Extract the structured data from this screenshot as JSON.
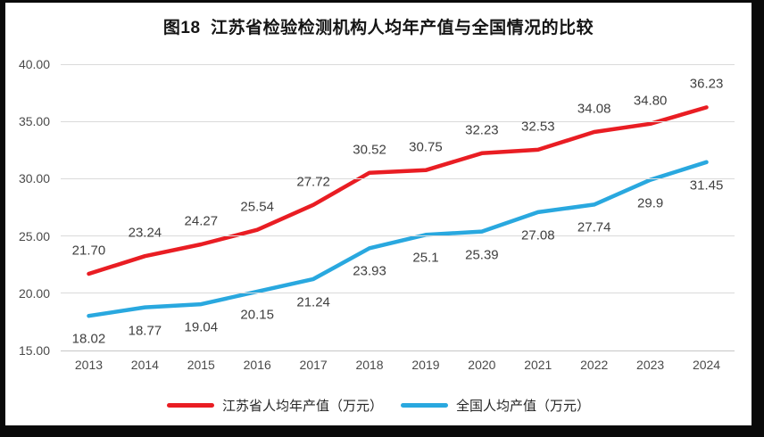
{
  "page": {
    "title": "图18  江苏省检验检测机构人均年产值与全国情况的比较"
  },
  "chart_data": {
    "type": "line",
    "title": "图18  江苏省检验检测机构人均年产值与全国情况的比较",
    "categories": [
      "2013",
      "2014",
      "2015",
      "2016",
      "2017",
      "2018",
      "2019",
      "2020",
      "2021",
      "2022",
      "2023",
      "2024"
    ],
    "series": [
      {
        "name": "江苏省人均年产值（万元）",
        "color": "#e91d23",
        "values": [
          21.7,
          23.24,
          24.27,
          25.54,
          27.72,
          30.52,
          30.75,
          32.23,
          32.53,
          34.08,
          34.8,
          36.23
        ],
        "labels": [
          "21.70",
          "23.24",
          "24.27",
          "25.54",
          "27.72",
          "30.52",
          "30.75",
          "32.23",
          "32.53",
          "34.08",
          "34.80",
          "36.23"
        ],
        "label_position": "above"
      },
      {
        "name": "全国人均产值（万元）",
        "color": "#29a8df",
        "values": [
          18.02,
          18.77,
          19.04,
          20.15,
          21.24,
          23.93,
          25.1,
          25.39,
          27.08,
          27.74,
          29.9,
          31.45
        ],
        "labels": [
          "18.02",
          "18.77",
          "19.04",
          "20.15",
          "21.24",
          "23.93",
          "25.1",
          "25.39",
          "27.08",
          "27.74",
          "29.9",
          "31.45"
        ],
        "label_position": "below"
      }
    ],
    "ylim": [
      15,
      40
    ],
    "ytick_values": [
      15,
      20,
      25,
      30,
      35,
      40
    ],
    "yticks": [
      "15.00",
      "20.00",
      "25.00",
      "30.00",
      "35.00",
      "40.00"
    ],
    "grid": true,
    "legend_position": "bottom",
    "xlabel": "",
    "ylabel": ""
  },
  "colors": {
    "grid": "#dadada",
    "axis_line": "#c6c6c6",
    "axis_text": "#4a4a4a",
    "data_label_text": "#3f3f3f",
    "page_background": "#ffffff",
    "frame": "#0a0a0a"
  }
}
